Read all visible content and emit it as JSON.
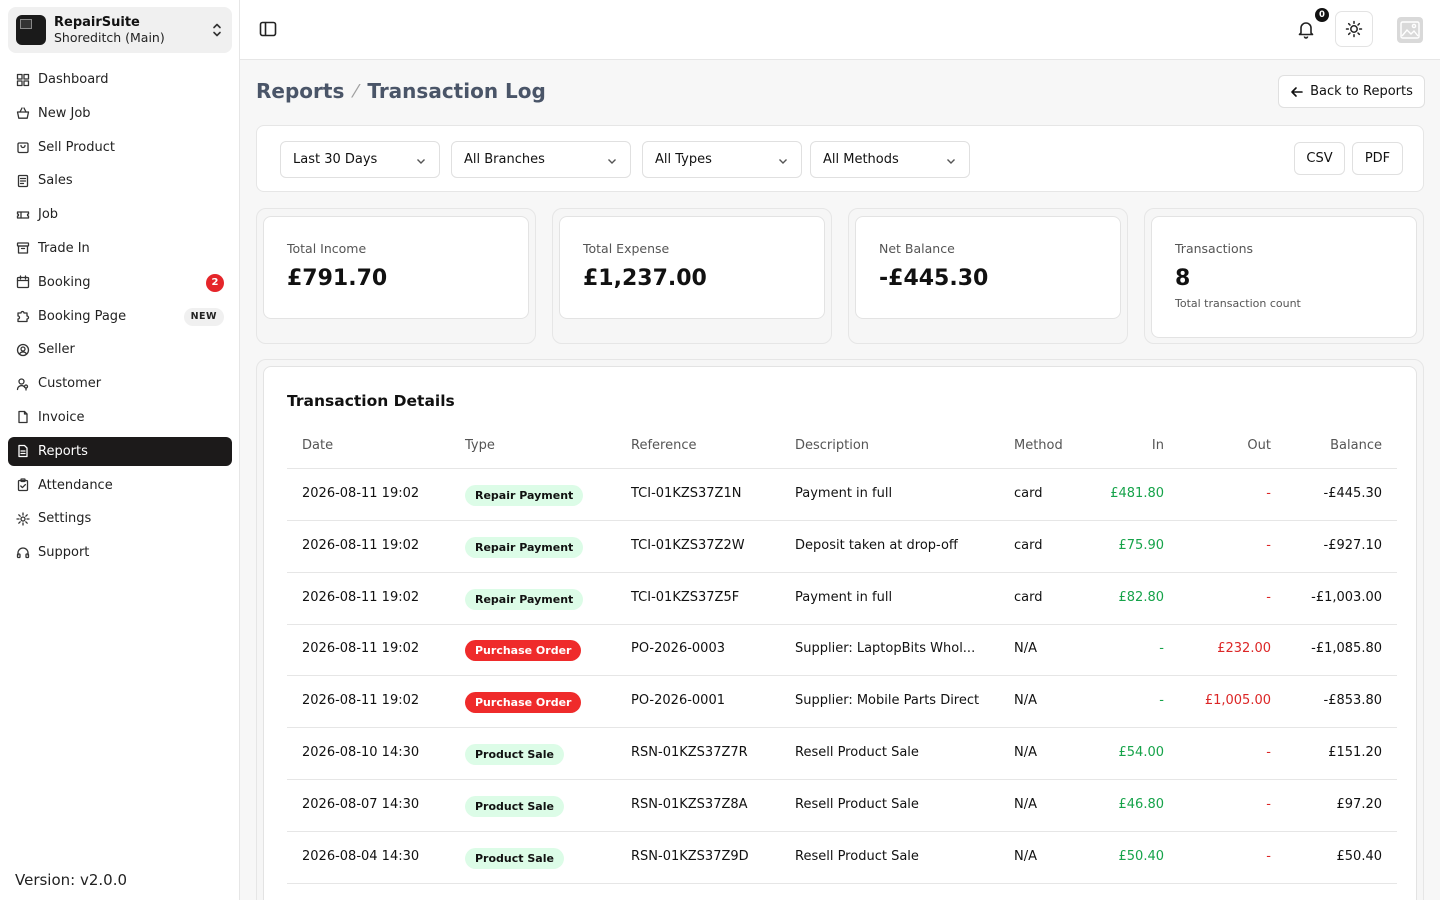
{
  "org": {
    "name": "RepairSuite",
    "branch": "Shoreditch (Main)"
  },
  "nav": [
    {
      "label": "Dashboard",
      "icon": "dashboard-icon"
    },
    {
      "label": "New Job",
      "icon": "basket-icon"
    },
    {
      "label": "Sell Product",
      "icon": "bag-icon"
    },
    {
      "label": "Sales",
      "icon": "receipt-icon"
    },
    {
      "label": "Job",
      "icon": "ticket-icon"
    },
    {
      "label": "Trade In",
      "icon": "archive-icon"
    },
    {
      "label": "Booking",
      "icon": "calendar-icon",
      "badge": "2"
    },
    {
      "label": "Booking Page",
      "icon": "puzzle-icon",
      "tag": "NEW"
    },
    {
      "label": "Seller",
      "icon": "user-circle-icon"
    },
    {
      "label": "Customer",
      "icon": "user-key-icon"
    },
    {
      "label": "Invoice",
      "icon": "file-icon"
    },
    {
      "label": "Reports",
      "icon": "file-lines-icon",
      "active": true
    },
    {
      "label": "Attendance",
      "icon": "clipboard-check-icon"
    },
    {
      "label": "Settings",
      "icon": "gear-icon"
    },
    {
      "label": "Support",
      "icon": "headset-icon"
    }
  ],
  "version": "Version: v2.0.0",
  "topbar": {
    "notification_count": "0"
  },
  "breadcrumb": {
    "parent": "Reports",
    "current": "Transaction Log"
  },
  "back_button": "Back to Reports",
  "filters": {
    "period": "Last 30 Days",
    "branch": "All Branches",
    "type": "All Types",
    "method": "All Methods",
    "csv": "CSV",
    "pdf": "PDF"
  },
  "stats": [
    {
      "label": "Total Income",
      "value": "£791.70"
    },
    {
      "label": "Total Expense",
      "value": "£1,237.00"
    },
    {
      "label": "Net Balance",
      "value": "-£445.30"
    },
    {
      "label": "Transactions",
      "value": "8",
      "sub": "Total transaction count"
    }
  ],
  "table": {
    "title": "Transaction Details",
    "columns": [
      "Date",
      "Type",
      "Reference",
      "Description",
      "Method",
      "In",
      "Out",
      "Balance"
    ],
    "rows": [
      {
        "date": "2026-08-11 19:02",
        "type": "Repair Payment",
        "type_color": "green",
        "ref": "TCI-01KZS37Z1N",
        "desc": "Payment in full",
        "method": "card",
        "in": "£481.80",
        "out": "-",
        "balance": "-£445.30"
      },
      {
        "date": "2026-08-11 19:02",
        "type": "Repair Payment",
        "type_color": "green",
        "ref": "TCI-01KZS37Z2W",
        "desc": "Deposit taken at drop-off",
        "method": "card",
        "in": "£75.90",
        "out": "-",
        "balance": "-£927.10"
      },
      {
        "date": "2026-08-11 19:02",
        "type": "Repair Payment",
        "type_color": "green",
        "ref": "TCI-01KZS37Z5F",
        "desc": "Payment in full",
        "method": "card",
        "in": "£82.80",
        "out": "-",
        "balance": "-£1,003.00"
      },
      {
        "date": "2026-08-11 19:02",
        "type": "Purchase Order",
        "type_color": "red",
        "ref": "PO-2026-0003",
        "desc": "Supplier: LaptopBits Whol...",
        "method": "N/A",
        "in": "-",
        "out": "£232.00",
        "balance": "-£1,085.80"
      },
      {
        "date": "2026-08-11 19:02",
        "type": "Purchase Order",
        "type_color": "red",
        "ref": "PO-2026-0001",
        "desc": "Supplier: Mobile Parts Direct",
        "method": "N/A",
        "in": "-",
        "out": "£1,005.00",
        "balance": "-£853.80"
      },
      {
        "date": "2026-08-10 14:30",
        "type": "Product Sale",
        "type_color": "green",
        "ref": "RSN-01KZS37Z7R",
        "desc": "Resell Product Sale",
        "method": "N/A",
        "in": "£54.00",
        "out": "-",
        "balance": "£151.20"
      },
      {
        "date": "2026-08-07 14:30",
        "type": "Product Sale",
        "type_color": "green",
        "ref": "RSN-01KZS37Z8A",
        "desc": "Resell Product Sale",
        "method": "N/A",
        "in": "£46.80",
        "out": "-",
        "balance": "£97.20"
      },
      {
        "date": "2026-08-04 14:30",
        "type": "Product Sale",
        "type_color": "green",
        "ref": "RSN-01KZS37Z9D",
        "desc": "Resell Product Sale",
        "method": "N/A",
        "in": "£50.40",
        "out": "-",
        "balance": "£50.40"
      }
    ]
  }
}
